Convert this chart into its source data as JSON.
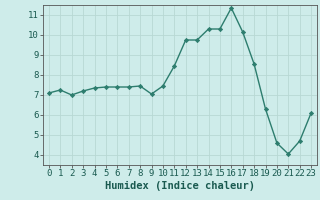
{
  "x": [
    0,
    1,
    2,
    3,
    4,
    5,
    6,
    7,
    8,
    9,
    10,
    11,
    12,
    13,
    14,
    15,
    16,
    17,
    18,
    19,
    20,
    21,
    22,
    23
  ],
  "y": [
    7.1,
    7.25,
    7.0,
    7.2,
    7.35,
    7.4,
    7.4,
    7.4,
    7.45,
    7.05,
    7.45,
    8.45,
    9.75,
    9.75,
    10.3,
    10.3,
    11.35,
    10.15,
    8.55,
    6.3,
    4.6,
    4.05,
    4.7,
    6.1
  ],
  "xlim": [
    -0.5,
    23.5
  ],
  "ylim": [
    3.5,
    11.5
  ],
  "xticks": [
    0,
    1,
    2,
    3,
    4,
    5,
    6,
    7,
    8,
    9,
    10,
    11,
    12,
    13,
    14,
    15,
    16,
    17,
    18,
    19,
    20,
    21,
    22,
    23
  ],
  "yticks": [
    4,
    5,
    6,
    7,
    8,
    9,
    10,
    11
  ],
  "xlabel": "Humidex (Indice chaleur)",
  "line_color": "#2d7d6e",
  "marker": "D",
  "markersize": 2.2,
  "linewidth": 1.0,
  "bg_color": "#ceecea",
  "grid_color": "#b8d8d4",
  "xlabel_fontsize": 7.5,
  "tick_fontsize": 6.5
}
